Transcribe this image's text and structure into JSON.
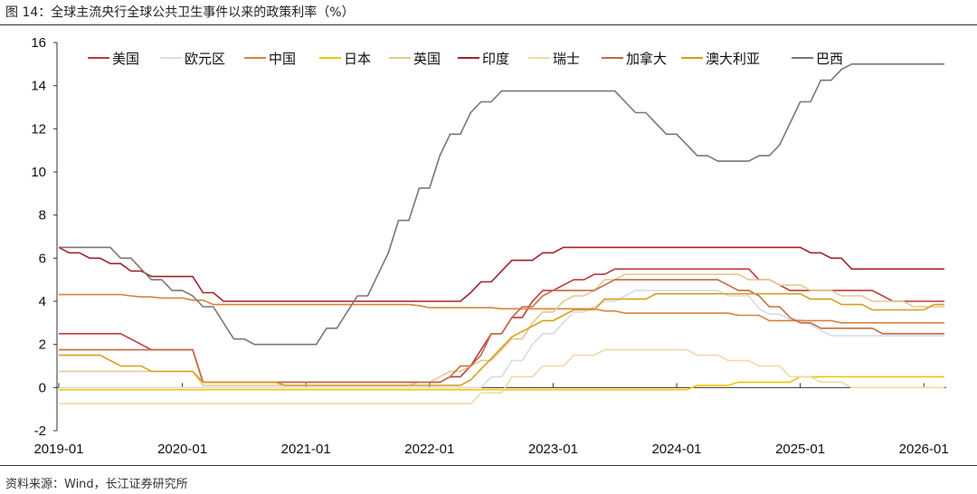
{
  "title": "图 14：全球主流央行全球公共卫生事件以来的政策利率（%）",
  "source": "资料来源：Wind，长江证券研究所",
  "chart_data": {
    "type": "line",
    "title": "图 14：全球主流央行全球公共卫生事件以来的政策利率（%）",
    "xlabel": "",
    "ylabel": "",
    "ylim": [
      -2,
      16
    ],
    "yticks": [
      "16",
      "14",
      "12",
      "10",
      "8",
      "6",
      "4",
      "2",
      "0",
      "-2"
    ],
    "xticks": [
      "2019-01",
      "2020-01",
      "2021-01",
      "2022-01",
      "2023-01",
      "2024-01",
      "2025-01",
      "2026-01"
    ],
    "xrange": [
      "2019-01",
      "2026-03"
    ],
    "grid": false,
    "legend": "top",
    "series": [
      {
        "name": "美国",
        "color": "#c0393b",
        "points": [
          [
            "2019-01",
            2.5
          ],
          [
            "2019-08",
            2.25
          ],
          [
            "2019-09",
            2.0
          ],
          [
            "2019-10",
            1.75
          ],
          [
            "2020-03",
            0.25
          ],
          [
            "2022-03",
            0.5
          ],
          [
            "2022-05",
            1.0
          ],
          [
            "2022-06",
            1.75
          ],
          [
            "2022-07",
            2.5
          ],
          [
            "2022-09",
            3.25
          ],
          [
            "2022-11",
            4.0
          ],
          [
            "2022-12",
            4.5
          ],
          [
            "2023-02",
            4.75
          ],
          [
            "2023-03",
            5.0
          ],
          [
            "2023-05",
            5.25
          ],
          [
            "2023-07",
            5.5
          ],
          [
            "2024-09",
            5.0
          ],
          [
            "2024-11",
            4.75
          ],
          [
            "2024-12",
            4.5
          ],
          [
            "2025-09",
            4.25
          ],
          [
            "2025-10",
            4.0
          ]
        ]
      },
      {
        "name": "欧元区",
        "color": "#d5dce8",
        "points": [
          [
            "2019-01",
            0.0
          ],
          [
            "2022-07",
            0.5
          ],
          [
            "2022-09",
            1.25
          ],
          [
            "2022-11",
            2.0
          ],
          [
            "2022-12",
            2.5
          ],
          [
            "2023-02",
            3.0
          ],
          [
            "2023-03",
            3.5
          ],
          [
            "2023-05",
            3.75
          ],
          [
            "2023-06",
            4.0
          ],
          [
            "2023-08",
            4.25
          ],
          [
            "2023-09",
            4.5
          ],
          [
            "2024-06",
            4.25
          ],
          [
            "2024-09",
            3.65
          ],
          [
            "2024-10",
            3.4
          ],
          [
            "2024-12",
            3.15
          ],
          [
            "2025-02",
            2.9
          ],
          [
            "2025-03",
            2.65
          ],
          [
            "2025-04",
            2.4
          ]
        ]
      },
      {
        "name": "中国",
        "color": "#d9823b",
        "points": [
          [
            "2019-01",
            4.31
          ],
          [
            "2019-08",
            4.25
          ],
          [
            "2019-09",
            4.2
          ],
          [
            "2019-11",
            4.15
          ],
          [
            "2020-02",
            4.05
          ],
          [
            "2020-04",
            3.85
          ],
          [
            "2021-12",
            3.8
          ],
          [
            "2022-01",
            3.7
          ],
          [
            "2022-08",
            3.65
          ],
          [
            "2023-06",
            3.55
          ],
          [
            "2023-08",
            3.45
          ],
          [
            "2024-07",
            3.35
          ],
          [
            "2024-10",
            3.1
          ],
          [
            "2025-05",
            3.0
          ]
        ]
      },
      {
        "name": "日本",
        "color": "#f2c500",
        "points": [
          [
            "2019-01",
            -0.1
          ],
          [
            "2024-03",
            0.1
          ],
          [
            "2024-07",
            0.25
          ],
          [
            "2025-01",
            0.5
          ]
        ]
      },
      {
        "name": "英国",
        "color": "#e6c78e",
        "points": [
          [
            "2019-01",
            0.75
          ],
          [
            "2020-03",
            0.1
          ],
          [
            "2021-12",
            0.25
          ],
          [
            "2022-02",
            0.5
          ],
          [
            "2022-03",
            0.75
          ],
          [
            "2022-05",
            1.0
          ],
          [
            "2022-06",
            1.25
          ],
          [
            "2022-08",
            1.75
          ],
          [
            "2022-09",
            2.25
          ],
          [
            "2022-11",
            3.0
          ],
          [
            "2022-12",
            3.5
          ],
          [
            "2023-02",
            4.0
          ],
          [
            "2023-03",
            4.25
          ],
          [
            "2023-05",
            4.5
          ],
          [
            "2023-06",
            5.0
          ],
          [
            "2023-08",
            5.25
          ],
          [
            "2024-08",
            5.0
          ],
          [
            "2024-11",
            4.75
          ],
          [
            "2025-02",
            4.5
          ],
          [
            "2025-05",
            4.25
          ],
          [
            "2025-08",
            4.0
          ],
          [
            "2025-12",
            3.75
          ]
        ]
      },
      {
        "name": "印度",
        "color": "#a3202f",
        "points": [
          [
            "2019-01",
            6.5
          ],
          [
            "2019-02",
            6.25
          ],
          [
            "2019-04",
            6.0
          ],
          [
            "2019-06",
            5.75
          ],
          [
            "2019-08",
            5.4
          ],
          [
            "2019-10",
            5.15
          ],
          [
            "2020-03",
            4.4
          ],
          [
            "2020-05",
            4.0
          ],
          [
            "2022-05",
            4.4
          ],
          [
            "2022-06",
            4.9
          ],
          [
            "2022-08",
            5.4
          ],
          [
            "2022-09",
            5.9
          ],
          [
            "2022-12",
            6.25
          ],
          [
            "2023-02",
            6.5
          ],
          [
            "2025-02",
            6.25
          ],
          [
            "2025-04",
            6.0
          ],
          [
            "2025-06",
            5.5
          ]
        ]
      },
      {
        "name": "瑞士",
        "color": "#f0d9a6",
        "points": [
          [
            "2019-01",
            -0.75
          ],
          [
            "2022-06",
            -0.25
          ],
          [
            "2022-09",
            0.5
          ],
          [
            "2022-12",
            1.0
          ],
          [
            "2023-03",
            1.5
          ],
          [
            "2023-06",
            1.75
          ],
          [
            "2024-03",
            1.5
          ],
          [
            "2024-06",
            1.25
          ],
          [
            "2024-09",
            1.0
          ],
          [
            "2024-12",
            0.5
          ],
          [
            "2025-03",
            0.25
          ],
          [
            "2025-06",
            0.0
          ]
        ]
      },
      {
        "name": "加拿大",
        "color": "#c46a45",
        "points": [
          [
            "2019-01",
            1.75
          ],
          [
            "2020-03",
            0.25
          ],
          [
            "2022-03",
            0.5
          ],
          [
            "2022-04",
            1.0
          ],
          [
            "2022-06",
            1.5
          ],
          [
            "2022-07",
            2.5
          ],
          [
            "2022-09",
            3.25
          ],
          [
            "2022-10",
            3.75
          ],
          [
            "2022-12",
            4.25
          ],
          [
            "2023-01",
            4.5
          ],
          [
            "2023-06",
            4.75
          ],
          [
            "2023-07",
            5.0
          ],
          [
            "2024-06",
            4.75
          ],
          [
            "2024-07",
            4.5
          ],
          [
            "2024-09",
            4.25
          ],
          [
            "2024-10",
            3.75
          ],
          [
            "2024-12",
            3.25
          ],
          [
            "2025-01",
            3.0
          ],
          [
            "2025-03",
            2.75
          ],
          [
            "2025-09",
            2.5
          ]
        ]
      },
      {
        "name": "澳大利亚",
        "color": "#d4a01e",
        "points": [
          [
            "2019-01",
            1.5
          ],
          [
            "2019-06",
            1.25
          ],
          [
            "2019-07",
            1.0
          ],
          [
            "2019-10",
            0.75
          ],
          [
            "2020-03",
            0.25
          ],
          [
            "2020-11",
            0.1
          ],
          [
            "2022-05",
            0.35
          ],
          [
            "2022-06",
            0.85
          ],
          [
            "2022-07",
            1.35
          ],
          [
            "2022-08",
            1.85
          ],
          [
            "2022-09",
            2.35
          ],
          [
            "2022-10",
            2.6
          ],
          [
            "2022-11",
            2.85
          ],
          [
            "2022-12",
            3.1
          ],
          [
            "2023-02",
            3.35
          ],
          [
            "2023-03",
            3.6
          ],
          [
            "2023-06",
            4.1
          ],
          [
            "2023-11",
            4.35
          ],
          [
            "2025-02",
            4.1
          ],
          [
            "2025-05",
            3.85
          ],
          [
            "2025-08",
            3.6
          ],
          [
            "2026-02",
            3.85
          ]
        ]
      },
      {
        "name": "巴西",
        "color": "#7f7575",
        "points": [
          [
            "2019-01",
            6.5
          ],
          [
            "2019-07",
            6.0
          ],
          [
            "2019-09",
            5.5
          ],
          [
            "2019-10",
            5.0
          ],
          [
            "2019-12",
            4.5
          ],
          [
            "2020-02",
            4.25
          ],
          [
            "2020-03",
            3.75
          ],
          [
            "2020-05",
            3.0
          ],
          [
            "2020-06",
            2.25
          ],
          [
            "2020-08",
            2.0
          ],
          [
            "2021-03",
            2.75
          ],
          [
            "2021-05",
            3.5
          ],
          [
            "2021-06",
            4.25
          ],
          [
            "2021-08",
            5.25
          ],
          [
            "2021-09",
            6.25
          ],
          [
            "2021-10",
            7.75
          ],
          [
            "2021-12",
            9.25
          ],
          [
            "2022-02",
            10.75
          ],
          [
            "2022-03",
            11.75
          ],
          [
            "2022-05",
            12.75
          ],
          [
            "2022-06",
            13.25
          ],
          [
            "2022-08",
            13.75
          ],
          [
            "2023-08",
            13.25
          ],
          [
            "2023-09",
            12.75
          ],
          [
            "2023-11",
            12.25
          ],
          [
            "2023-12",
            11.75
          ],
          [
            "2024-02",
            11.25
          ],
          [
            "2024-03",
            10.75
          ],
          [
            "2024-05",
            10.5
          ],
          [
            "2024-09",
            10.75
          ],
          [
            "2024-11",
            11.25
          ],
          [
            "2024-12",
            12.25
          ],
          [
            "2025-01",
            13.25
          ],
          [
            "2025-03",
            14.25
          ],
          [
            "2025-05",
            14.75
          ],
          [
            "2025-06",
            15.0
          ]
        ]
      }
    ]
  }
}
